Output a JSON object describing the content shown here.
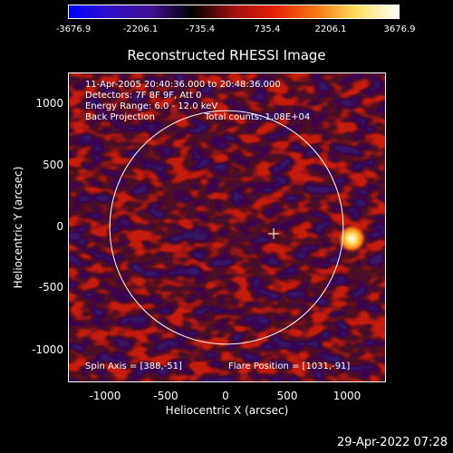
{
  "title": "Reconstructed RHESSI Image",
  "colorbar": {
    "ticks": [
      "-3676.9",
      "-2206.1",
      "-735.4",
      "735.4",
      "2206.1",
      "3676.9"
    ],
    "colors": [
      "#0000ff",
      "#3010c8",
      "#401090",
      "#000000",
      "#a01010",
      "#e82008",
      "#f87810",
      "#ffe060",
      "#ffffff"
    ]
  },
  "annotations": {
    "time_range": "11-Apr-2005 20:40:36.000 to 20:48:36.000",
    "detectors": "Detectors: 7F 8F 9F, Att 0",
    "energy_range": "Energy Range: 6.0 - 12.0 keV",
    "method": "Back Projection",
    "total_counts": "Total counts: 1.08E+04",
    "spin_axis": "Spin Axis = [388,-51]",
    "flare_position": "Flare Position = [1031,-91]"
  },
  "axes": {
    "x_label": "Heliocentric X (arcsec)",
    "y_label": "Heliocentric Y (arcsec)",
    "x_ticks": [
      "-1000",
      "-500",
      "0",
      "500",
      "1000"
    ],
    "y_ticks": [
      "1000",
      "500",
      "0",
      "-500",
      "-1000"
    ]
  },
  "map": {
    "solar_limb_radius_arcsec": 960,
    "spin_axis_marker": [
      388,
      -51
    ],
    "flare_source": [
      1031,
      -91
    ]
  },
  "timestamp": "29-Apr-2022 07:28"
}
